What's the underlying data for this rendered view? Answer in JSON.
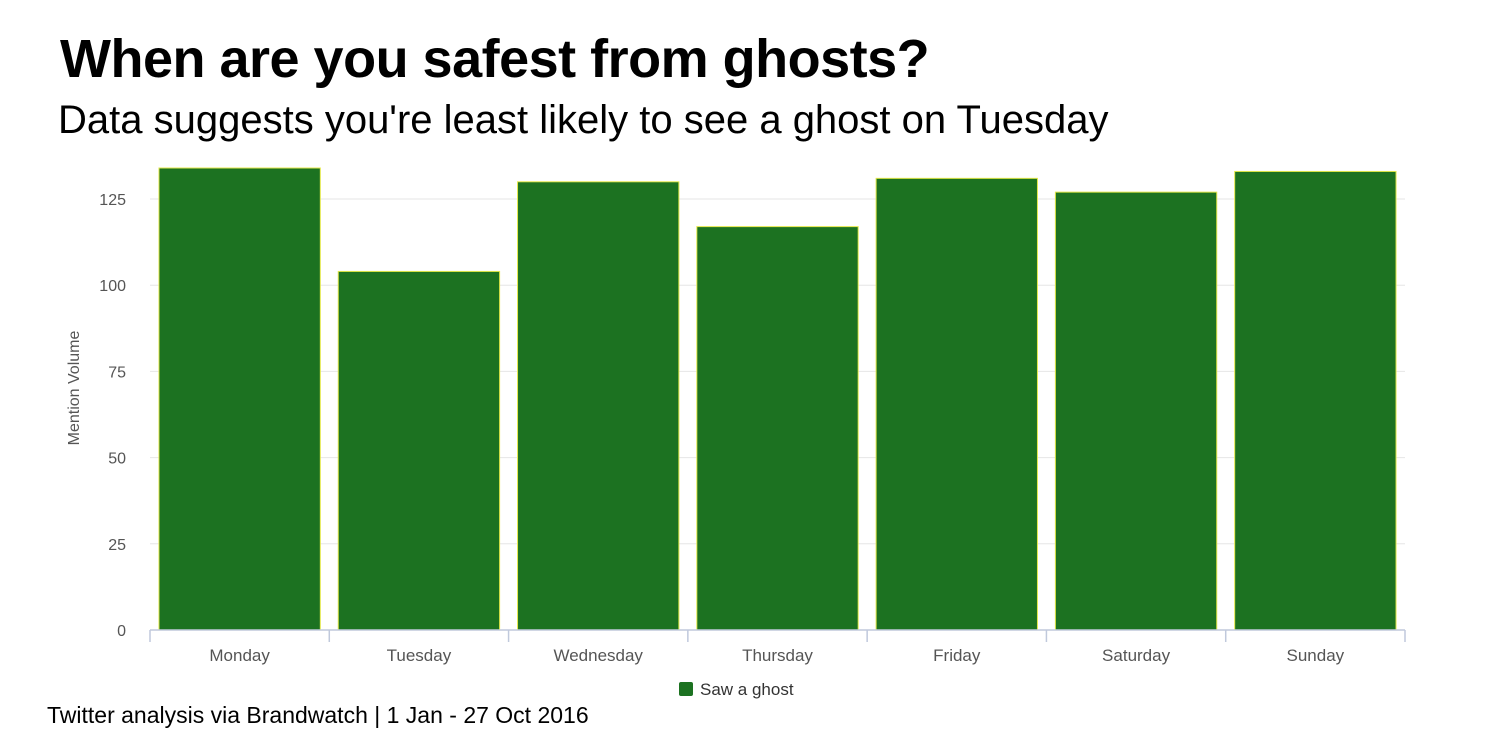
{
  "title": "When are you safest from ghosts?",
  "subtitle": "Data suggests you're least likely to see a ghost on Tuesday",
  "source": "Twitter analysis via Brandwatch | 1 Jan - 27 Oct 2016",
  "colors": {
    "bar_fill": "#1c7221",
    "bar_stroke": "#e4e84a",
    "grid": "#e6e6e6",
    "axis": "#c0c9dc",
    "tick_text": "#555555"
  },
  "chart_data": {
    "type": "bar",
    "categories": [
      "Monday",
      "Tuesday",
      "Wednesday",
      "Thursday",
      "Friday",
      "Saturday",
      "Sunday"
    ],
    "series": [
      {
        "name": "Saw a ghost",
        "values": [
          134,
          104,
          130,
          117,
          131,
          127,
          133
        ]
      }
    ],
    "ylabel": "Mention Volume",
    "xlabel": "",
    "ylim": [
      0,
      134
    ],
    "yticks": [
      0,
      25,
      50,
      75,
      100,
      125
    ],
    "grid": true,
    "legend": "bottom-center"
  }
}
